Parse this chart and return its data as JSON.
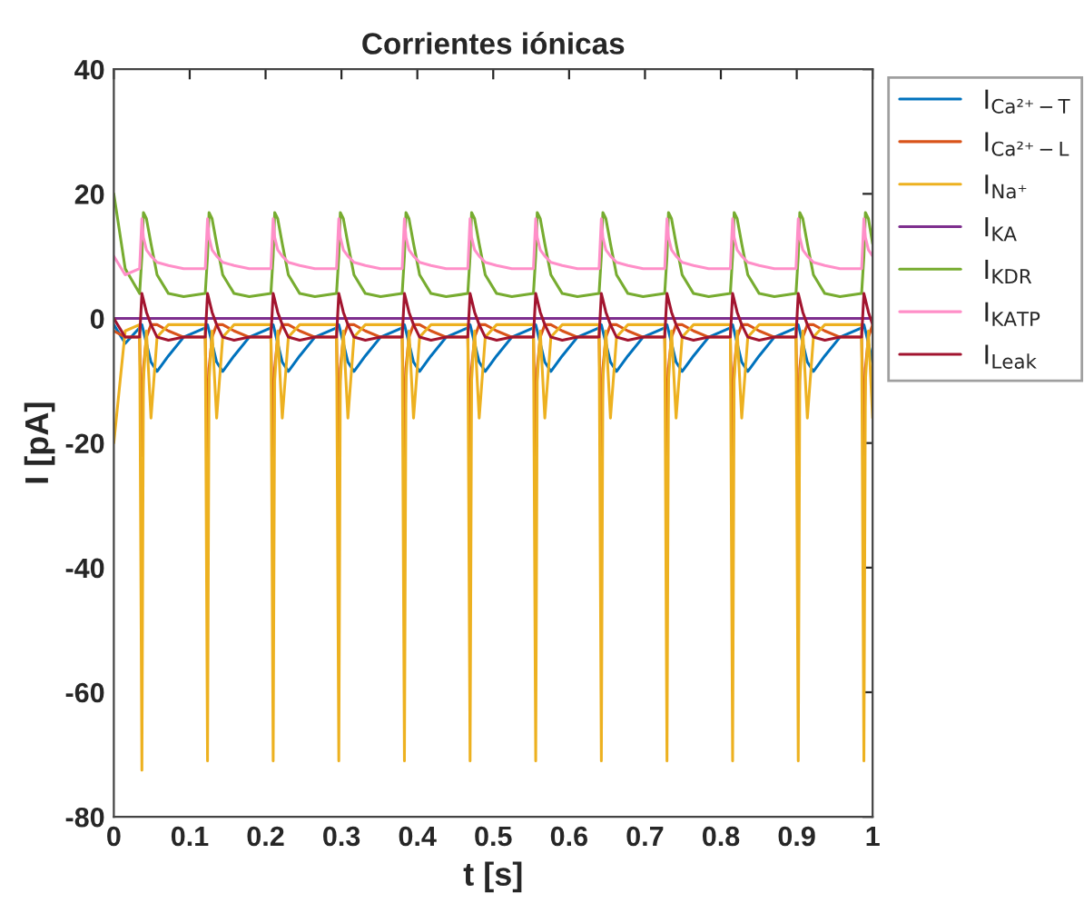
{
  "chart_data": {
    "type": "line",
    "title": "Corrientes iónicas",
    "xlabel": "t [s]",
    "ylabel": "I [pA]",
    "x": [
      0,
      0.015,
      0.034,
      0.037,
      0.039,
      0.043,
      0.049,
      0.057,
      0.072,
      0.092,
      0.1205,
      0.1235,
      0.1255,
      0.1295,
      0.1355,
      0.1435,
      0.1585,
      0.1785,
      0.207,
      0.21,
      0.212,
      0.216,
      0.222,
      0.23,
      0.245,
      0.265,
      0.2935,
      0.2965,
      0.2985,
      0.3025,
      0.3085,
      0.3165,
      0.3315,
      0.3515,
      0.38,
      0.383,
      0.385,
      0.389,
      0.395,
      0.403,
      0.418,
      0.438,
      0.4665,
      0.4695,
      0.4715,
      0.4755,
      0.4815,
      0.4895,
      0.5045,
      0.5245,
      0.553,
      0.556,
      0.558,
      0.562,
      0.568,
      0.576,
      0.591,
      0.611,
      0.6395,
      0.6425,
      0.6445,
      0.6485,
      0.6545,
      0.6625,
      0.6775,
      0.6975,
      0.726,
      0.729,
      0.731,
      0.735,
      0.741,
      0.749,
      0.764,
      0.784,
      0.8125,
      0.8155,
      0.8175,
      0.8215,
      0.8275,
      0.8355,
      0.8505,
      0.8705,
      0.899,
      0.902,
      0.904,
      0.908,
      0.914,
      0.922,
      0.937,
      0.957,
      0.9855,
      0.9885,
      0.9905,
      0.9945,
      1.0
    ],
    "series": [
      {
        "name": "I$_{Ca²⁺−T}$",
        "color": "#0072bd",
        "values": [
          -1,
          -4,
          -1.5,
          -1,
          -2,
          -4,
          -7,
          -8.5,
          -6,
          -3,
          -1.5,
          -1,
          -2,
          -4,
          -7,
          -8.5,
          -6,
          -3,
          -1.5,
          -1,
          -2,
          -4,
          -7,
          -8.5,
          -6,
          -3,
          -1.5,
          -1,
          -2,
          -4,
          -7,
          -8.5,
          -6,
          -3,
          -1.5,
          -1,
          -2,
          -4,
          -7,
          -8.5,
          -6,
          -3,
          -1.5,
          -1,
          -2,
          -4,
          -7,
          -8.5,
          -6,
          -3,
          -1.5,
          -1,
          -2,
          -4,
          -7,
          -8.5,
          -6,
          -3,
          -1.5,
          -1,
          -2,
          -4,
          -7,
          -8.5,
          -6,
          -3,
          -1.5,
          -1,
          -2,
          -4,
          -7,
          -8.5,
          -6,
          -3,
          -1.5,
          -1,
          -2,
          -4,
          -7,
          -8.5,
          -6,
          -3,
          -1.5,
          -1,
          -2,
          -4,
          -7,
          -8.5,
          -6,
          -3,
          -1.5,
          -1,
          -2,
          -4,
          -7
        ]
      },
      {
        "name": "I$_{Ca²⁺−L}$",
        "color": "#d95319",
        "values": [
          -2,
          -3,
          -3,
          -22,
          -8,
          -3,
          -1,
          -1,
          -2,
          -3,
          -3,
          -22,
          -8,
          -3,
          -1,
          -1,
          -2,
          -3,
          -3,
          -22,
          -8,
          -3,
          -1,
          -1,
          -2,
          -3,
          -3,
          -22,
          -8,
          -3,
          -1,
          -1,
          -2,
          -3,
          -3,
          -22,
          -8,
          -3,
          -1,
          -1,
          -2,
          -3,
          -3,
          -22,
          -8,
          -3,
          -1,
          -1,
          -2,
          -3,
          -3,
          -22,
          -8,
          -3,
          -1,
          -1,
          -2,
          -3,
          -3,
          -22,
          -8,
          -3,
          -1,
          -1,
          -2,
          -3,
          -3,
          -22,
          -8,
          -3,
          -1,
          -1,
          -2,
          -3,
          -3,
          -22,
          -8,
          -3,
          -1,
          -1,
          -2,
          -3,
          -3,
          -22,
          -8,
          -3,
          -1,
          -1,
          -2,
          -3,
          -3,
          -22,
          -8,
          -3,
          -1
        ]
      },
      {
        "name": "I$_{Na⁺}$",
        "color": "#edb120",
        "values": [
          -20,
          -2,
          -1,
          -72.5,
          -10,
          -2,
          -16,
          -3,
          -1,
          -1,
          -1,
          -71,
          -10,
          -2,
          -16,
          -3,
          -1,
          -1,
          -1,
          -71,
          -10,
          -2,
          -16,
          -3,
          -1,
          -1,
          -1,
          -71,
          -10,
          -2,
          -16,
          -3,
          -1,
          -1,
          -1,
          -71,
          -10,
          -2,
          -16,
          -3,
          -1,
          -1,
          -1,
          -71,
          -10,
          -2,
          -16,
          -3,
          -1,
          -1,
          -1,
          -71,
          -10,
          -2,
          -16,
          -3,
          -1,
          -1,
          -1,
          -71,
          -10,
          -2,
          -16,
          -3,
          -1,
          -1,
          -1,
          -71,
          -10,
          -2,
          -16,
          -3,
          -1,
          -1,
          -1,
          -71,
          -10,
          -2,
          -16,
          -3,
          -1,
          -1,
          -1,
          -71,
          -10,
          -2,
          -16,
          -3,
          -1,
          -1,
          -1,
          -71,
          -10,
          -2,
          -16
        ]
      },
      {
        "name": "I$_{KA}$",
        "color": "#7e2f8e",
        "values": [
          0,
          0,
          0,
          0,
          0,
          0,
          0,
          0,
          0,
          0,
          0,
          0,
          0,
          0,
          0,
          0,
          0,
          0,
          0,
          0,
          0,
          0,
          0,
          0,
          0,
          0,
          0,
          0,
          0,
          0,
          0,
          0,
          0,
          0,
          0,
          0,
          0,
          0,
          0,
          0,
          0,
          0,
          0,
          0,
          0,
          0,
          0,
          0,
          0,
          0,
          0,
          0,
          0,
          0,
          0,
          0,
          0,
          0,
          0,
          0,
          0,
          0,
          0,
          0,
          0,
          0,
          0,
          0,
          0,
          0,
          0,
          0,
          0,
          0,
          0,
          0,
          0,
          0,
          0,
          0,
          0,
          0,
          0,
          0,
          0,
          0,
          0,
          0,
          0,
          0,
          0,
          0,
          0,
          0,
          0
        ]
      },
      {
        "name": "I$_{KDR}$",
        "color": "#77ac30",
        "values": [
          20,
          8,
          4,
          10,
          17,
          16,
          12,
          7,
          4,
          3.5,
          4,
          10,
          17,
          16,
          12,
          7,
          4,
          3.5,
          4,
          10,
          17,
          16,
          12,
          7,
          4,
          3.5,
          4,
          10,
          17,
          16,
          12,
          7,
          4,
          3.5,
          4,
          10,
          17,
          16,
          12,
          7,
          4,
          3.5,
          4,
          10,
          17,
          16,
          12,
          7,
          4,
          3.5,
          4,
          10,
          17,
          16,
          12,
          7,
          4,
          3.5,
          4,
          10,
          17,
          16,
          12,
          7,
          4,
          3.5,
          4,
          10,
          17,
          16,
          12,
          7,
          4,
          3.5,
          4,
          10,
          17,
          16,
          12,
          7,
          4,
          3.5,
          4,
          10,
          17,
          16,
          12,
          7,
          4,
          3.5,
          4,
          10,
          17,
          16,
          12
        ]
      },
      {
        "name": "I$_{KATP}$",
        "color": "#ff8fc8",
        "values": [
          10,
          7,
          8,
          16,
          13,
          11,
          10,
          9,
          8.5,
          8,
          8,
          16,
          13,
          11,
          10,
          9,
          8.5,
          8,
          8,
          16,
          13,
          11,
          10,
          9,
          8.5,
          8,
          8,
          16,
          13,
          11,
          10,
          9,
          8.5,
          8,
          8,
          16,
          13,
          11,
          10,
          9,
          8.5,
          8,
          8,
          16,
          13,
          11,
          10,
          9,
          8.5,
          8,
          8,
          16,
          13,
          11,
          10,
          9,
          8.5,
          8,
          8,
          16,
          13,
          11,
          10,
          9,
          8.5,
          8,
          8,
          16,
          13,
          11,
          10,
          9,
          8.5,
          8,
          8,
          16,
          13,
          11,
          10,
          9,
          8.5,
          8,
          8,
          16,
          13,
          11,
          10,
          9,
          8.5,
          8,
          8,
          16,
          13,
          11,
          10
        ]
      },
      {
        "name": "I$_{Leak}$",
        "color": "#a2142f",
        "values": [
          0,
          -3,
          -3,
          4,
          3,
          1,
          -1,
          -3,
          -3.5,
          -3,
          -3,
          4,
          3,
          1,
          -1,
          -3,
          -3.5,
          -3,
          -3,
          4,
          3,
          1,
          -1,
          -3,
          -3.5,
          -3,
          -3,
          4,
          3,
          1,
          -1,
          -3,
          -3.5,
          -3,
          -3,
          4,
          3,
          1,
          -1,
          -3,
          -3.5,
          -3,
          -3,
          4,
          3,
          1,
          -1,
          -3,
          -3.5,
          -3,
          -3,
          4,
          3,
          1,
          -1,
          -3,
          -3.5,
          -3,
          -3,
          4,
          3,
          1,
          -1,
          -3,
          -3.5,
          -3,
          -3,
          4,
          3,
          1,
          -1,
          -3,
          -3.5,
          -3,
          -3,
          4,
          3,
          1,
          -1,
          -3,
          -3.5,
          -3,
          -3,
          4,
          3,
          1,
          -1,
          -3,
          -3.5,
          -3,
          -3,
          4,
          3,
          1,
          -1
        ]
      }
    ],
    "xlim": [
      0,
      1
    ],
    "ylim": [
      -80,
      40
    ],
    "xticks": [
      0,
      0.1,
      0.2,
      0.3,
      0.4,
      0.5,
      0.6,
      0.7,
      0.8,
      0.9,
      1
    ],
    "yticks": [
      -80,
      -60,
      -40,
      -20,
      0,
      20,
      40
    ],
    "grid": false,
    "legend": "right"
  }
}
